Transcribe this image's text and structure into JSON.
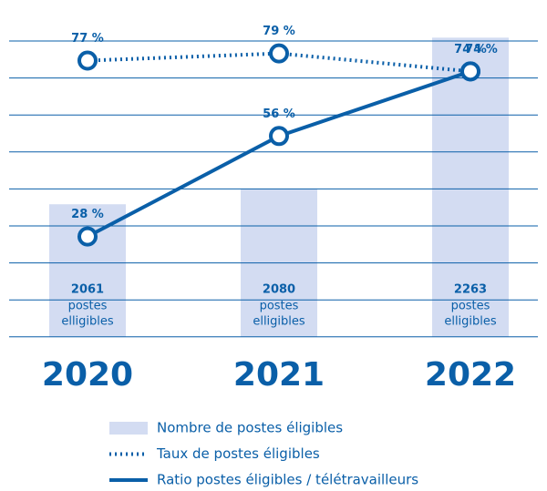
{
  "chart_data": {
    "type": "bar_line",
    "categories": [
      "2020",
      "2021",
      "2022"
    ],
    "series": [
      {
        "name": "Nombre de postes éligibles",
        "type": "bar",
        "axis": "y2",
        "color": "#d3dcf2",
        "values": [
          2061,
          2080,
          2263
        ],
        "caption": [
          "postes",
          "elligibles"
        ]
      },
      {
        "name": "Taux de postes éligibles",
        "type": "dotted-line",
        "color": "#0a5fa8",
        "values": [
          77,
          79,
          74
        ],
        "value_labels": [
          "77 %",
          "79 %",
          "74 %"
        ]
      },
      {
        "name": "Ratio postes éligibles / télétravailleurs",
        "type": "line",
        "color": "#0a5fa8",
        "values": [
          28,
          56,
          74
        ],
        "value_labels": [
          "28 %",
          "56 %",
          "74 %"
        ]
      }
    ],
    "ylim": [
      0,
      85
    ],
    "y2lim": [
      1900,
      2270
    ]
  }
}
